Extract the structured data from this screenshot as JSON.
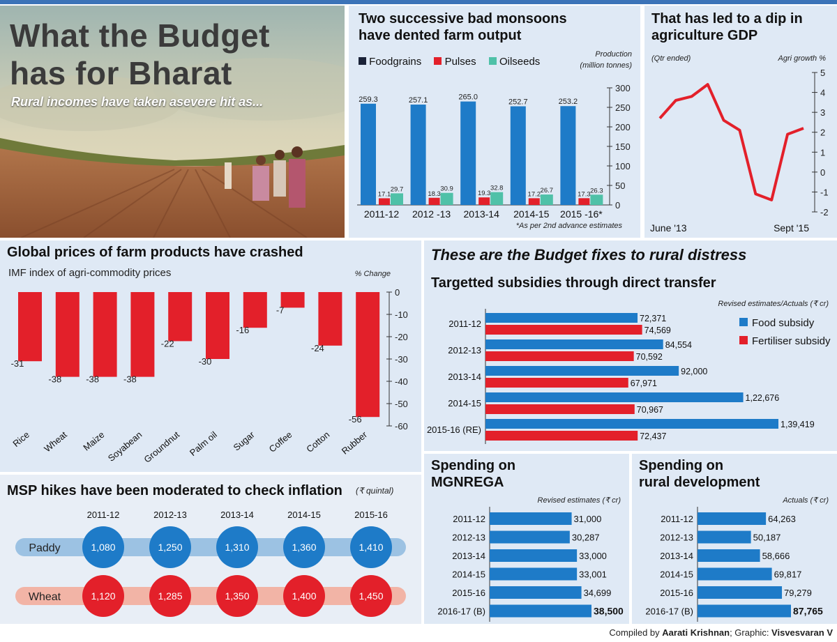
{
  "header": {
    "title_line1": "What the Budget",
    "title_line2": "has for Bharat",
    "subtitle": "Rural incomes have taken asevere hit as..."
  },
  "footer": {
    "compiled_prefix": "Compiled by ",
    "compiled_name": "Aarati Krishnan",
    "graphic_prefix": "; Graphic: ",
    "graphic_name": "Visvesvaran V"
  },
  "colors": {
    "blue": "#1e7bc8",
    "red": "#e3202a",
    "teal": "#4fc1a8",
    "navy": "#1a2238",
    "panel_bg": "#dfe9f5"
  },
  "chart_data": [
    {
      "id": "farm_output",
      "type": "bar",
      "title": "Two successive bad monsoons have dented farm output",
      "title_line1": "Two successive bad monsoons",
      "title_line2": "have dented farm output",
      "ylabel_line1": "Production",
      "ylabel_line2": "(million tonnes)",
      "footnote": "*As per 2nd advance estimates",
      "categories": [
        "2011-12",
        "2012 -13",
        "2013-14",
        "2014-15",
        "2015 -16*"
      ],
      "ylim": [
        0,
        300
      ],
      "yticks": [
        "0",
        "50",
        "100",
        "150",
        "200",
        "250",
        "300"
      ],
      "legend": [
        "Foodgrains",
        "Pulses",
        "Oilseeds"
      ],
      "series": [
        {
          "name": "Foodgrains",
          "values": [
            259.3,
            257.1,
            265.0,
            252.7,
            253.2
          ],
          "labels": [
            "259.3",
            "257.1",
            "265.0",
            "252.7",
            "253.2"
          ]
        },
        {
          "name": "Pulses",
          "values": [
            17.1,
            18.3,
            19.3,
            17.2,
            17.3
          ],
          "labels": [
            "17.1",
            "18.3",
            "19.3",
            "17.2",
            "17.3"
          ]
        },
        {
          "name": "Oilseeds",
          "values": [
            29.7,
            30.9,
            32.8,
            26.7,
            26.3
          ],
          "labels": [
            "29.7",
            "30.9",
            "32.8",
            "26.7",
            "26.3"
          ]
        }
      ]
    },
    {
      "id": "agri_gdp",
      "type": "line",
      "title_line1": "That has led to a dip in",
      "title_line2": "agriculture GDP",
      "left_note": "(Qtr ended)",
      "ylabel": "Agri growth %",
      "x_start": "June '13",
      "x_end": "Sept '15",
      "ylim": [
        -2,
        5
      ],
      "yticks": [
        "5",
        "4",
        "3",
        "2",
        "1",
        "0",
        "-1",
        "-2"
      ],
      "values": [
        2.7,
        3.6,
        3.8,
        4.4,
        2.6,
        2.1,
        -1.1,
        -1.4,
        1.9,
        2.2
      ]
    },
    {
      "id": "commodity_prices",
      "type": "bar",
      "title": "Global prices of farm products have crashed",
      "subtitle": "IMF index of agri-commodity prices",
      "ylabel": "% Change",
      "categories": [
        "Rice",
        "Wheat",
        "Maize",
        "Soyabean",
        "Groundnut",
        "Palm oil",
        "Sugar",
        "Coffee",
        "Cotton",
        "Rubber"
      ],
      "values": [
        -31,
        -38,
        -38,
        -38,
        -22,
        -30,
        -16,
        -7,
        -24,
        -56
      ],
      "labels": [
        "-31",
        "-38",
        "-38",
        "-38",
        "-22",
        "-30",
        "-16",
        "-7",
        "-24",
        "-56"
      ],
      "ylim": [
        -60,
        0
      ],
      "yticks": [
        "0",
        "-10",
        "-20",
        "-30",
        "-40",
        "-50",
        "-60"
      ]
    },
    {
      "id": "msp",
      "type": "table",
      "title": "MSP hikes have been moderated to check inflation",
      "unit": "(₹ quintal)",
      "years": [
        "2011-12",
        "2012-13",
        "2013-14",
        "2014-15",
        "2015-16"
      ],
      "rows": [
        {
          "name": "Paddy",
          "values": [
            "1,080",
            "1,250",
            "1,310",
            "1,360",
            "1,410"
          ]
        },
        {
          "name": "Wheat",
          "values": [
            "1,120",
            "1,285",
            "1,350",
            "1,400",
            "1,450"
          ]
        }
      ]
    },
    {
      "id": "subsidies",
      "type": "bar",
      "orientation": "horizontal",
      "title": "Targetted subsidies through direct transfer",
      "unit": "Revised estimates/Actuals (₹ cr)",
      "categories": [
        "2011-12",
        "2012-13",
        "2013-14",
        "2014-15",
        "2015-16 (RE)"
      ],
      "series": [
        {
          "name": "Food subsidy",
          "values": [
            72371,
            84554,
            92000,
            122676,
            139419
          ],
          "labels": [
            "72,371",
            "84,554",
            "92,000",
            "1,22,676",
            "1,39,419"
          ]
        },
        {
          "name": "Fertiliser subsidy",
          "values": [
            74569,
            70592,
            67971,
            70967,
            72437
          ],
          "labels": [
            "74,569",
            "70,592",
            "67,971",
            "70,967",
            "72,437"
          ]
        }
      ]
    },
    {
      "id": "mgnrega",
      "type": "bar",
      "orientation": "horizontal",
      "title_line1": "Spending on",
      "title_line2": "MGNREGA",
      "unit": "Revised estimates (₹ cr)",
      "categories": [
        "2011-12",
        "2012-13",
        "2013-14",
        "2014-15",
        "2015-16",
        "2016-17 (B)"
      ],
      "values": [
        31000,
        30287,
        33000,
        33001,
        34699,
        38500
      ],
      "labels": [
        "31,000",
        "30,287",
        "33,000",
        "33,001",
        "34,699",
        "38,500"
      ]
    },
    {
      "id": "rural_dev",
      "type": "bar",
      "orientation": "horizontal",
      "title_line1": "Spending on",
      "title_line2": "rural development",
      "unit": "Actuals (₹ cr)",
      "categories": [
        "2011-12",
        "2012-13",
        "2013-14",
        "2014-15",
        "2015-16",
        "2016-17 (B)"
      ],
      "values": [
        64263,
        50187,
        58666,
        69817,
        79279,
        87765
      ],
      "labels": [
        "64,263",
        "50,187",
        "58,666",
        "69,817",
        "79,279",
        "87,765"
      ]
    }
  ],
  "fixes_title": "These are the Budget fixes to rural distress"
}
